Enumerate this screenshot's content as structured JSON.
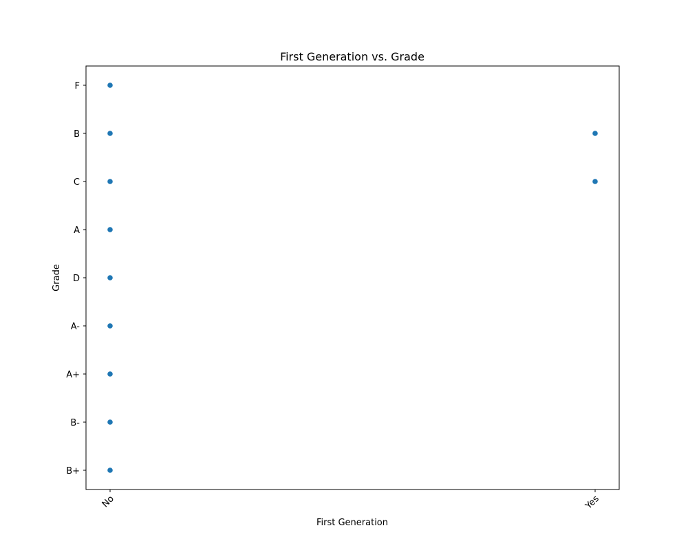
{
  "chart_data": {
    "type": "scatter",
    "title": "First Generation vs. Grade",
    "xlabel": "First Generation",
    "ylabel": "Grade",
    "x_categories": [
      "No",
      "Yes"
    ],
    "y_categories": [
      "B+",
      "B-",
      "A+",
      "A-",
      "D",
      "A",
      "C",
      "B",
      "F"
    ],
    "points": [
      {
        "x": "No",
        "y": "F"
      },
      {
        "x": "No",
        "y": "B"
      },
      {
        "x": "No",
        "y": "C"
      },
      {
        "x": "No",
        "y": "A"
      },
      {
        "x": "No",
        "y": "D"
      },
      {
        "x": "No",
        "y": "A-"
      },
      {
        "x": "No",
        "y": "A+"
      },
      {
        "x": "No",
        "y": "B-"
      },
      {
        "x": "No",
        "y": "B+"
      },
      {
        "x": "Yes",
        "y": "B"
      },
      {
        "x": "Yes",
        "y": "C"
      }
    ],
    "grid": false,
    "color": "#1f77b4"
  }
}
